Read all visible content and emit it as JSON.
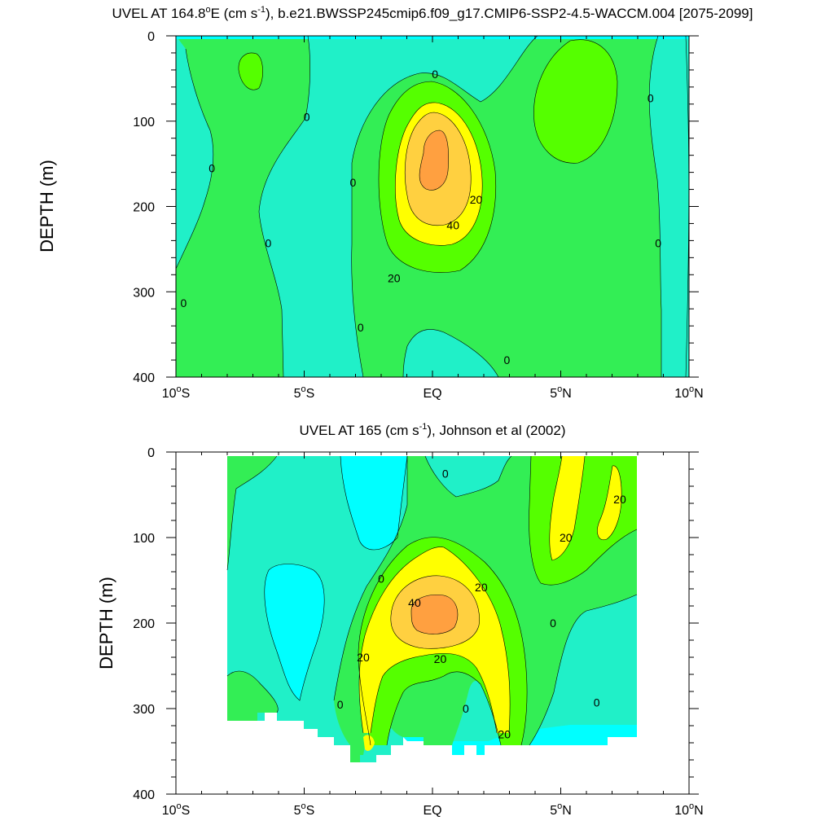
{
  "colors": {
    "lt_neg_20": "#00ffff",
    "neg_20_to_0": "#20f0c8",
    "0_to_10": "#33ee55",
    "10_to_20": "#55ff00",
    "20_to_30": "#ffff00",
    "30_to_40": "#ffd040",
    "gt_40": "#ffa040",
    "contour_line": "#000000"
  },
  "chart_data": [
    {
      "type": "heatmap",
      "subtype": "filled-contour latitude-depth section",
      "title_main": "UVEL AT 164.8",
      "title_deg": "o",
      "title_mid": "E (cm s",
      "title_sup": "-1",
      "title_end": "), b.e21.BWSSP245cmip6.f09_g17.CMIP6-SSP2-4.5-WACCM.004 [2075-2099]",
      "xlabel": "",
      "ylabel": "DEPTH (m)",
      "xlim": [
        -10,
        10
      ],
      "ylim": [
        400,
        0
      ],
      "x_ticks": [
        -10,
        -5,
        0,
        5,
        10
      ],
      "x_tick_labels": [
        "10°S",
        "5°S",
        "EQ",
        "5°N",
        "10°N"
      ],
      "y_ticks": [
        0,
        100,
        200,
        300,
        400
      ],
      "contour_interval": 10,
      "contour_labels": [
        {
          "text": "0",
          "lat": 0.1,
          "depth": 45
        },
        {
          "text": "0",
          "lat": -4.9,
          "depth": 95
        },
        {
          "text": "0",
          "lat": -8.6,
          "depth": 155
        },
        {
          "text": "0",
          "lat": -3.1,
          "depth": 172
        },
        {
          "text": "0",
          "lat": -6.4,
          "depth": 243
        },
        {
          "text": "0",
          "lat": -9.7,
          "depth": 313
        },
        {
          "text": "0",
          "lat": -2.8,
          "depth": 342
        },
        {
          "text": "0",
          "lat": 2.9,
          "depth": 380
        },
        {
          "text": "0",
          "lat": 8.5,
          "depth": 73
        },
        {
          "text": "0",
          "lat": 8.8,
          "depth": 243
        },
        {
          "text": "20",
          "lat": 1.7,
          "depth": 192
        },
        {
          "text": "40",
          "lat": 0.8,
          "depth": 222
        },
        {
          "text": "20",
          "lat": -1.5,
          "depth": 284
        }
      ],
      "notable_features": "Equatorial Undercurrent core > 40 cm/s centered near 0° at ~160 m; westward flow (< 0) bands near 7°S and 9°N"
    },
    {
      "type": "heatmap",
      "subtype": "filled-contour latitude-depth section",
      "title_main": "UVEL AT 165 (cm s",
      "title_sup": "-1",
      "title_end": "), Johnson et al (2002)",
      "xlabel": "",
      "ylabel": "DEPTH (m)",
      "xlim": [
        -10,
        10
      ],
      "ylim": [
        400,
        0
      ],
      "x_ticks": [
        -10,
        -5,
        0,
        5,
        10
      ],
      "x_tick_labels": [
        "10°S",
        "5°S",
        "EQ",
        "5°N",
        "10°N"
      ],
      "y_ticks": [
        0,
        100,
        200,
        300,
        400
      ],
      "data_extent": {
        "lat": [
          -8,
          8
        ],
        "depth": [
          0,
          365
        ]
      },
      "contour_interval": 10,
      "contour_labels": [
        {
          "text": "0",
          "lat": 0.5,
          "depth": 25
        },
        {
          "text": "20",
          "lat": 7.3,
          "depth": 55
        },
        {
          "text": "20",
          "lat": 5.2,
          "depth": 100
        },
        {
          "text": "0",
          "lat": -2.0,
          "depth": 148
        },
        {
          "text": "20",
          "lat": 1.9,
          "depth": 158
        },
        {
          "text": "40",
          "lat": -0.7,
          "depth": 176
        },
        {
          "text": "0",
          "lat": 4.7,
          "depth": 200
        },
        {
          "text": "20",
          "lat": -2.7,
          "depth": 240
        },
        {
          "text": "20",
          "lat": 0.3,
          "depth": 242
        },
        {
          "text": "0",
          "lat": -3.6,
          "depth": 295
        },
        {
          "text": "0",
          "lat": 1.3,
          "depth": 300
        },
        {
          "text": "0",
          "lat": 6.4,
          "depth": 293
        },
        {
          "text": "20",
          "lat": 2.8,
          "depth": 330
        }
      ],
      "notable_features": "Observed Equatorial Undercurrent core > 40 cm/s near 0° at ~185 m; eastward jet > 20 cm/s near 5-7°N in upper 100 m"
    }
  ]
}
